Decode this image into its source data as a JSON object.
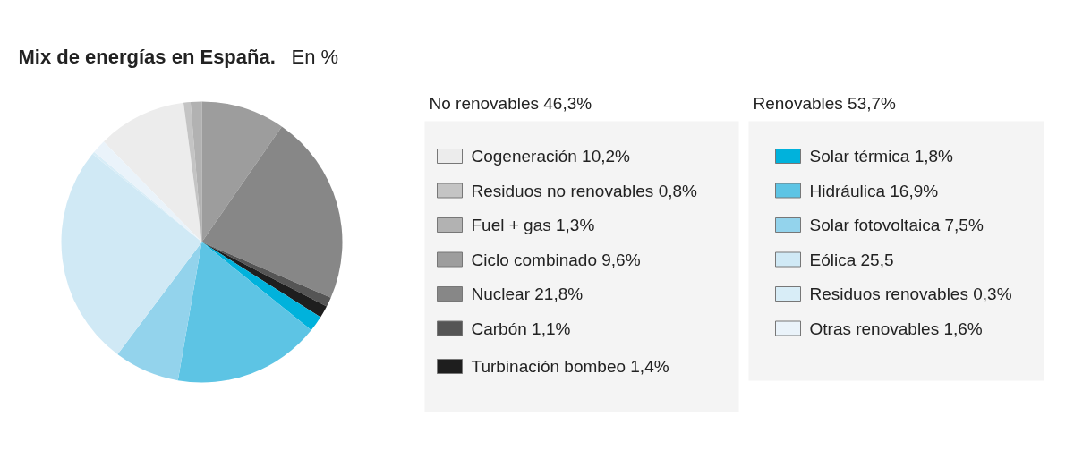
{
  "chart_data": {
    "type": "pie",
    "title": "Mix de energías en España.",
    "subtitle": "En %",
    "categories": [
      "Cogeneración",
      "Residuos no renovables",
      "Fuel + gas",
      "Ciclo combinado",
      "Nuclear",
      "Carbón",
      "Turbinación bombeo",
      "Solar térmica",
      "Hidráulica",
      "Solar fotovoltaica",
      "Eólica",
      "Residuos renovables",
      "Otras renovables"
    ],
    "values": [
      10.2,
      0.8,
      1.3,
      9.6,
      21.8,
      1.1,
      1.4,
      1.8,
      16.9,
      7.5,
      25.5,
      0.3,
      1.6
    ],
    "value_labels": [
      "10,2%",
      "0,8%",
      "1,3%",
      "9,6%",
      "21,8%",
      "1,1%",
      "1,4%",
      "1,8%",
      "16,9%",
      "7,5%",
      "25,5",
      "0,3%",
      "1,6%"
    ],
    "colors": [
      "#ececec",
      "#c4c4c4",
      "#b2b2b2",
      "#9d9d9d",
      "#878787",
      "#555555",
      "#1e1e1e",
      "#00b2dc",
      "#5dc4e4",
      "#93d3ec",
      "#d0e9f5",
      "#d8edf7",
      "#eaf3fa"
    ],
    "annotations": [
      "No renovables 46,3%",
      "Renovables 53,7%"
    ],
    "legend": "right"
  }
}
